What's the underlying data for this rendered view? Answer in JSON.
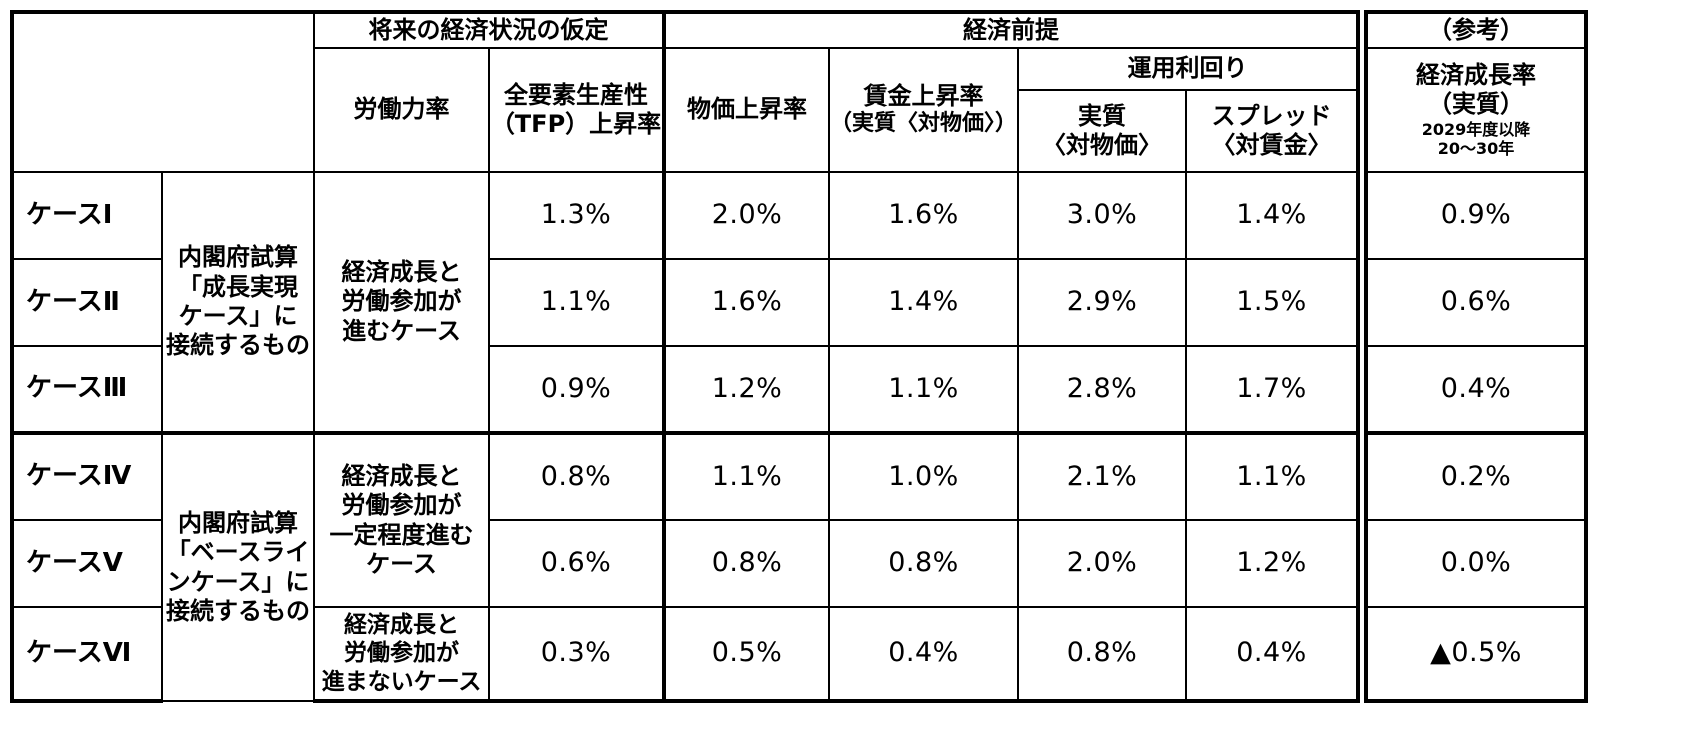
{
  "header": {
    "assumptions_group": "将来の経済状況の仮定",
    "premises_group": "経済前提",
    "reference_group": "（参考）",
    "labor_force": "労働力率",
    "tfp_line1": "全要素生産性",
    "tfp_line2": "（TFP）上昇率",
    "price": "物価上昇率",
    "wage_line1": "賃金上昇率",
    "wage_line2": "（実質〈対物価〉）",
    "yield_group": "運用利回り",
    "real_line1": "実質",
    "real_line2": "〈対物価〉",
    "spread_line1": "スプレッド",
    "spread_line2": "〈対賃金〉",
    "growth_line1": "経済成長率",
    "growth_line2": "（実質）",
    "growth_line3": "2029年度以降",
    "growth_line4": "20～30年"
  },
  "groups": {
    "growth_case": [
      "内閣府試算",
      "「成長実現",
      "ケース」に",
      "接続するもの"
    ],
    "baseline_case": [
      "内閣府試算",
      "「ベースライ",
      "ンケース」に",
      "接続するもの"
    ]
  },
  "labor": {
    "advance": [
      "経済成長と",
      "労働参加が",
      "進むケース"
    ],
    "partial": [
      "経済成長と",
      "労働参加が",
      "一定程度進む",
      "ケース"
    ],
    "none": [
      "経済成長と",
      "労働参加が",
      "進まないケース"
    ]
  },
  "rows": [
    {
      "case": "ケースⅠ",
      "tfp": "1.3%",
      "price": "2.0%",
      "wage": "1.6%",
      "real": "3.0%",
      "spread": "1.4%",
      "growth": "0.9%"
    },
    {
      "case": "ケースⅡ",
      "tfp": "1.1%",
      "price": "1.6%",
      "wage": "1.4%",
      "real": "2.9%",
      "spread": "1.5%",
      "growth": "0.6%"
    },
    {
      "case": "ケースⅢ",
      "tfp": "0.9%",
      "price": "1.2%",
      "wage": "1.1%",
      "real": "2.8%",
      "spread": "1.7%",
      "growth": "0.4%"
    },
    {
      "case": "ケースⅣ",
      "tfp": "0.8%",
      "price": "1.1%",
      "wage": "1.0%",
      "real": "2.1%",
      "spread": "1.1%",
      "growth": "0.2%"
    },
    {
      "case": "ケースⅤ",
      "tfp": "0.6%",
      "price": "0.8%",
      "wage": "0.8%",
      "real": "2.0%",
      "spread": "1.2%",
      "growth": "0.0%"
    },
    {
      "case": "ケースⅥ",
      "tfp": "0.3%",
      "price": "0.5%",
      "wage": "0.4%",
      "real": "0.8%",
      "spread": "0.4%",
      "growth": "▲0.5%"
    }
  ]
}
